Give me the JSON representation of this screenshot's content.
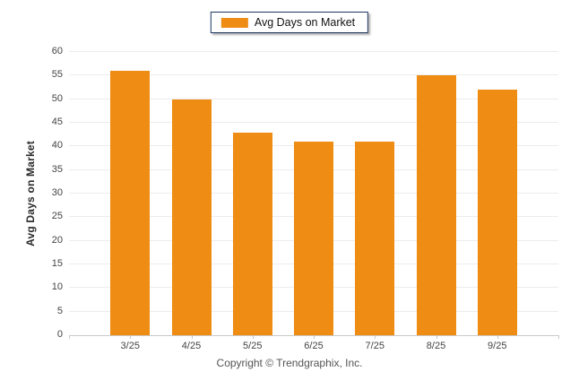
{
  "legend": {
    "label": "Avg Days on Market",
    "swatch_color": "#ee8c13"
  },
  "footer": {
    "copyright": "Copyright © Trendgraphix, Inc."
  },
  "colors": {
    "bar": "#ee8c13",
    "legend_border": "#1f3864",
    "gridline": "#ececec",
    "axis_line": "#c8c8c8",
    "tick_text": "#444444"
  },
  "chart_data": {
    "type": "bar",
    "title": "",
    "categories": [
      "3/25",
      "4/25",
      "5/25",
      "6/25",
      "7/25",
      "8/25",
      "9/25"
    ],
    "values": [
      56,
      50,
      43,
      41,
      41,
      55,
      52
    ],
    "series_name": "Avg Days on Market",
    "xlabel": "",
    "ylabel": "Avg Days on Market",
    "ylim": [
      0,
      60
    ],
    "ytick_step": 5,
    "grid": true,
    "legend_position": "top-center",
    "bar_color": "#ee8c13"
  }
}
